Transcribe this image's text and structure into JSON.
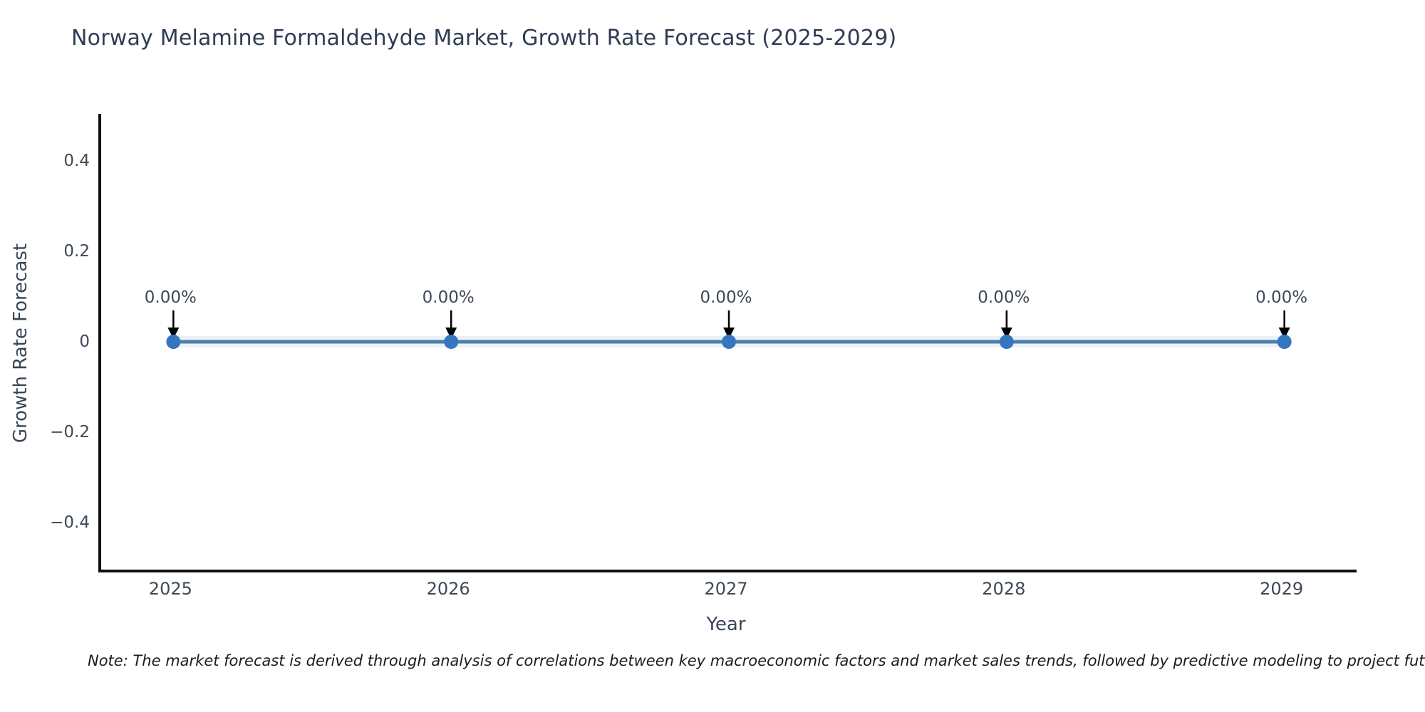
{
  "title": "Norway Melamine Formaldehyde Market, Growth Rate Forecast (2025-2029)",
  "note": "Note: The market forecast is derived through analysis of correlations between key macroeconomic factors and market sales trends, followed by predictive modeling to project future sales.",
  "chart_data": {
    "type": "line",
    "title": "Norway Melamine Formaldehyde Market, Growth Rate Forecast (2025-2029)",
    "xlabel": "Year",
    "ylabel": "Growth Rate Forecast",
    "x": [
      2025,
      2026,
      2027,
      2028,
      2029
    ],
    "series": [
      {
        "name": "Growth Rate Forecast",
        "values": [
          0,
          0,
          0,
          0,
          0
        ]
      }
    ],
    "point_labels": [
      "0.00%",
      "0.00%",
      "0.00%",
      "0.00%",
      "0.00%"
    ],
    "xticks": [
      2025,
      2026,
      2027,
      2028,
      2029
    ],
    "xtick_labels": [
      "2025",
      "2026",
      "2027",
      "2028",
      "2029"
    ],
    "yticks": [
      0.4,
      0.2,
      0,
      -0.2,
      -0.4
    ],
    "ytick_labels": [
      "0.4",
      "0.2",
      "0",
      "−0.2",
      "−0.4"
    ],
    "xlim": [
      2024.74,
      2029.26
    ],
    "ylim": [
      -0.504,
      0.504
    ],
    "grid": false,
    "legend": false,
    "colors": {
      "line": "#4d80a8",
      "marker": "#3577be",
      "halo": "#d6e5f1",
      "arrow": "#000000",
      "spine": "#111111",
      "title_text": "#2e3c54",
      "tick_text": "#3e4857",
      "axis_label_text": "#3a4658",
      "note_text": "#1c1c1c"
    }
  }
}
